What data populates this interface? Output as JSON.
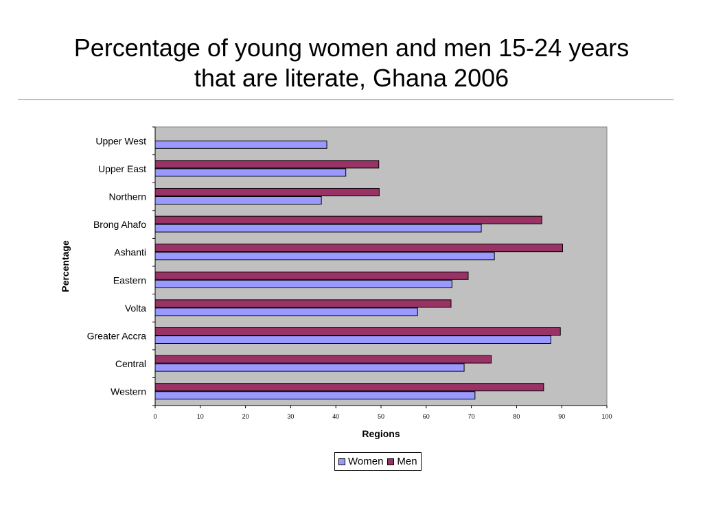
{
  "title": "Percentage of young women and men 15-24 years that are literate, Ghana 2006",
  "title_lines": [
    "Percentage of young women and men 15-24 years",
    "that are literate, Ghana 2006"
  ],
  "colors": {
    "plot_background": "#c0c0c0",
    "women": "#9999ff",
    "men": "#993366",
    "axis": "#000000"
  },
  "chart_data": {
    "type": "bar",
    "orientation": "horizontal",
    "categories": [
      "Upper West",
      "Upper East",
      "Northern",
      "Brong Ahafo",
      "Ashanti",
      "Eastern",
      "Volta",
      "Greater Accra",
      "Central",
      "Western"
    ],
    "series": [
      {
        "name": "Women",
        "color": "#9999ff",
        "values": [
          38.0,
          42.2,
          36.8,
          72.2,
          75.1,
          65.7,
          58.1,
          87.6,
          68.4,
          70.8
        ]
      },
      {
        "name": "Men",
        "color": "#993366",
        "values": [
          null,
          49.5,
          49.6,
          85.6,
          90.2,
          69.3,
          65.5,
          89.7,
          74.4,
          86.0
        ]
      }
    ],
    "xlabel": "Regions",
    "ylabel": "Percentage",
    "xlim": [
      0,
      100
    ],
    "xticks": [
      0,
      10,
      20,
      30,
      40,
      50,
      60,
      70,
      80,
      90,
      100
    ],
    "grid": false,
    "legend_position": "bottom"
  }
}
